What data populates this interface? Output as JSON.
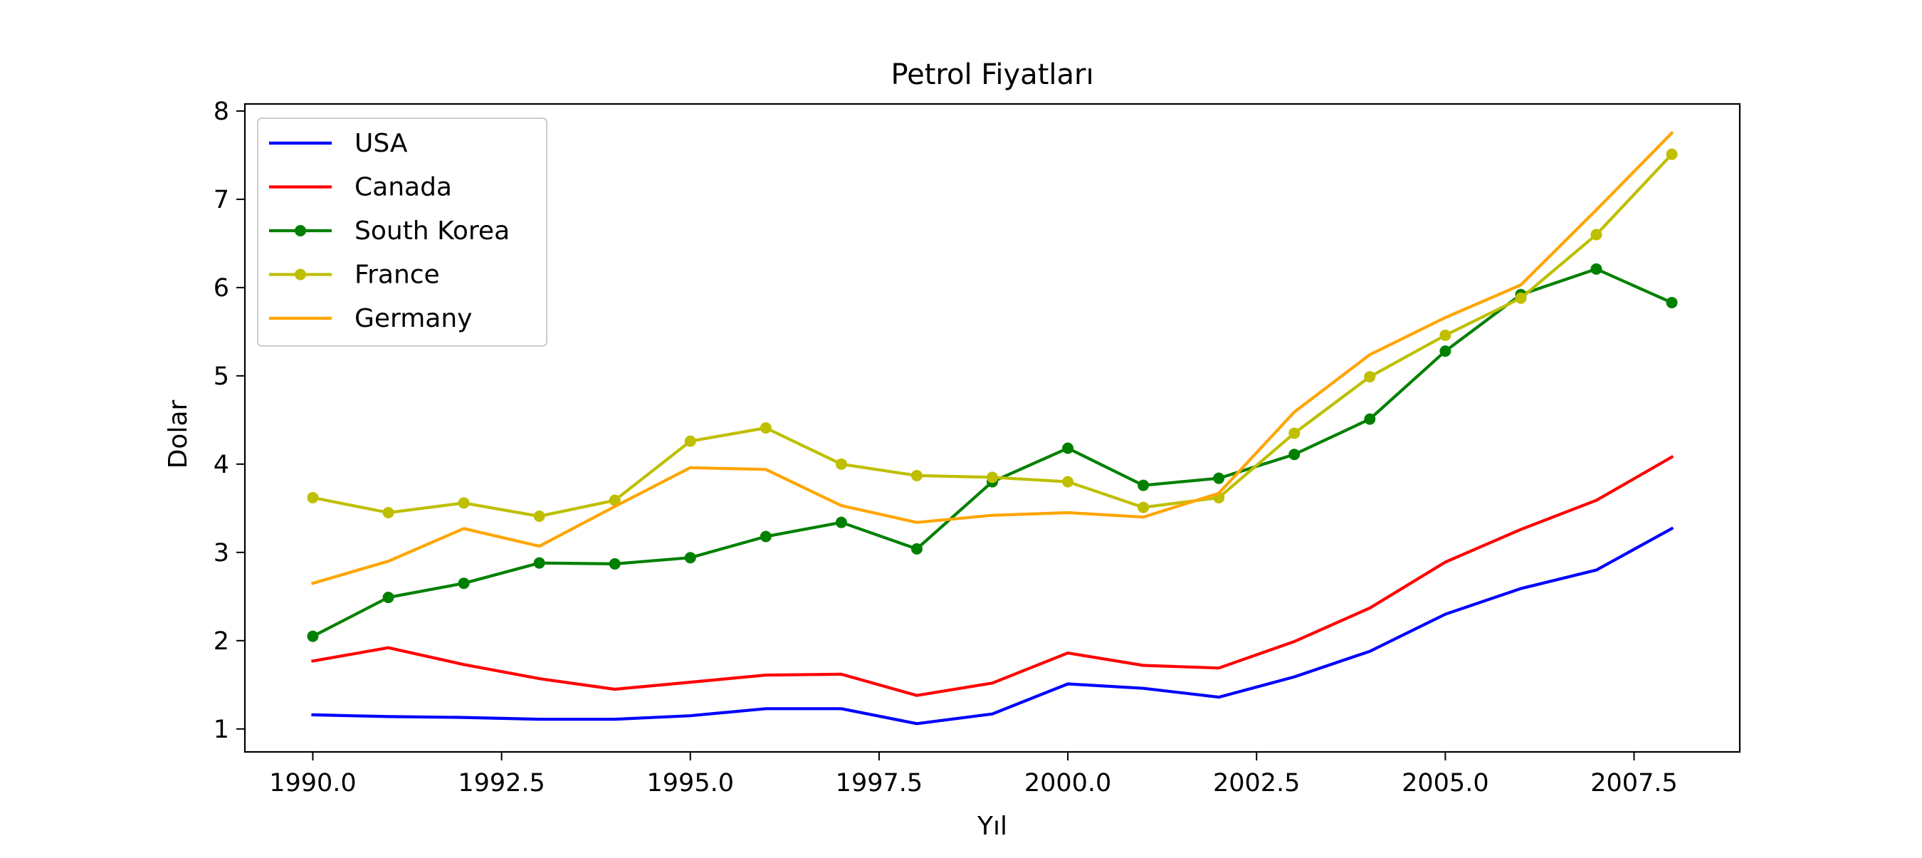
{
  "chart_data": {
    "type": "line",
    "title": "Petrol Fiyatları",
    "xlabel": "Yıl",
    "ylabel": "Dolar",
    "xlim": [
      1989.1,
      2008.9
    ],
    "ylim": [
      0.74,
      8.08
    ],
    "xticks": [
      1990.0,
      1992.5,
      1995.0,
      1997.5,
      2000.0,
      2002.5,
      2005.0,
      2007.5
    ],
    "xtick_labels": [
      "1990.0",
      "1992.5",
      "1995.0",
      "1997.5",
      "2000.0",
      "2002.5",
      "2005.0",
      "2007.5"
    ],
    "yticks": [
      1,
      2,
      3,
      4,
      5,
      6,
      7,
      8
    ],
    "ytick_labels": [
      "1",
      "2",
      "3",
      "4",
      "5",
      "6",
      "7",
      "8"
    ],
    "grid": false,
    "legend_position": "upper-left",
    "x": [
      1990,
      1991,
      1992,
      1993,
      1994,
      1995,
      1996,
      1997,
      1998,
      1999,
      2000,
      2001,
      2002,
      2003,
      2004,
      2005,
      2006,
      2007,
      2008
    ],
    "series": [
      {
        "name": "USA",
        "color": "#0000ff",
        "marker": false,
        "values": [
          1.16,
          1.14,
          1.13,
          1.11,
          1.11,
          1.15,
          1.23,
          1.23,
          1.06,
          1.17,
          1.51,
          1.46,
          1.36,
          1.59,
          1.88,
          2.3,
          2.59,
          2.8,
          3.27
        ]
      },
      {
        "name": "Canada",
        "color": "#ff0000",
        "marker": false,
        "values": [
          1.77,
          1.92,
          1.73,
          1.57,
          1.45,
          1.53,
          1.61,
          1.62,
          1.38,
          1.52,
          1.86,
          1.72,
          1.69,
          1.99,
          2.37,
          2.89,
          3.26,
          3.59,
          4.08
        ]
      },
      {
        "name": "South Korea",
        "color": "#008000",
        "marker": true,
        "values": [
          2.05,
          2.49,
          2.65,
          2.88,
          2.87,
          2.94,
          3.18,
          3.34,
          3.04,
          3.8,
          4.18,
          3.76,
          3.84,
          4.11,
          4.51,
          5.28,
          5.92,
          6.21,
          5.83
        ]
      },
      {
        "name": "France",
        "color": "#bfbf00",
        "marker": true,
        "values": [
          3.62,
          3.45,
          3.56,
          3.41,
          3.59,
          4.26,
          4.41,
          4.0,
          3.87,
          3.85,
          3.8,
          3.51,
          3.62,
          4.35,
          4.99,
          5.46,
          5.88,
          6.6,
          7.51
        ]
      },
      {
        "name": "Germany",
        "color": "#ffa500",
        "marker": false,
        "values": [
          2.65,
          2.9,
          3.27,
          3.07,
          3.52,
          3.96,
          3.94,
          3.53,
          3.34,
          3.42,
          3.45,
          3.4,
          3.67,
          4.59,
          5.24,
          5.66,
          6.03,
          6.88,
          7.75
        ]
      }
    ]
  }
}
